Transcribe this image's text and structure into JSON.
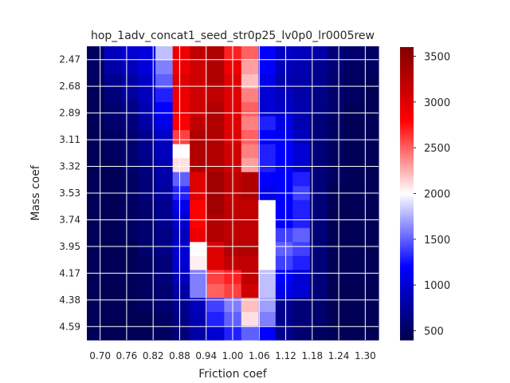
{
  "chart_data": {
    "type": "heatmap",
    "title": "hop_1adv_concat1_seed_str0p25_lv0p0_lr0005rew",
    "xlabel": "Friction coef",
    "ylabel": "Mass coef",
    "x_tick_labels": [
      "0.70",
      "0.76",
      "0.82",
      "0.88",
      "0.94",
      "1.00",
      "1.06",
      "1.12",
      "1.18",
      "1.24",
      "1.30"
    ],
    "y_tick_labels": [
      "2.47",
      "2.68",
      "2.89",
      "3.11",
      "3.32",
      "3.53",
      "3.74",
      "3.95",
      "4.17",
      "4.38",
      "4.59"
    ],
    "colorbar": {
      "colormap": "seismic",
      "vmin": 400,
      "vmax": 3600,
      "ticks": [
        500,
        1000,
        1500,
        2000,
        2500,
        3000,
        3500
      ]
    },
    "grid": true,
    "values": [
      [
        500,
        900,
        1000,
        1050,
        1800,
        2900,
        3200,
        3300,
        2700,
        2500,
        1200,
        950,
        900,
        800,
        600,
        550,
        500
      ],
      [
        500,
        800,
        900,
        1050,
        1600,
        2900,
        3100,
        3300,
        2900,
        2300,
        1200,
        900,
        850,
        700,
        600,
        500,
        500
      ],
      [
        500,
        700,
        800,
        950,
        1500,
        3000,
        3100,
        3300,
        3000,
        2200,
        1100,
        850,
        800,
        700,
        550,
        500,
        450
      ],
      [
        450,
        600,
        750,
        900,
        1300,
        2900,
        3100,
        3200,
        3000,
        2400,
        1000,
        900,
        800,
        650,
        550,
        500,
        450
      ],
      [
        450,
        550,
        650,
        850,
        1200,
        2900,
        3100,
        3300,
        3000,
        2500,
        1000,
        950,
        850,
        650,
        550,
        450,
        450
      ],
      [
        450,
        550,
        600,
        800,
        1100,
        2800,
        3200,
        3300,
        3000,
        2400,
        1300,
        1100,
        850,
        600,
        500,
        450,
        450
      ],
      [
        450,
        500,
        550,
        700,
        950,
        2600,
        3300,
        3300,
        3000,
        2500,
        1200,
        1150,
        900,
        600,
        500,
        450,
        450
      ],
      [
        450,
        500,
        550,
        700,
        900,
        2000,
        3300,
        3300,
        3100,
        2400,
        1300,
        1200,
        1000,
        600,
        500,
        450,
        450
      ],
      [
        450,
        450,
        550,
        650,
        850,
        2100,
        3300,
        3300,
        3100,
        2300,
        1300,
        1200,
        1000,
        600,
        500,
        450,
        450
      ],
      [
        450,
        450,
        500,
        600,
        800,
        1500,
        3000,
        3400,
        3200,
        3300,
        1200,
        1200,
        1300,
        600,
        500,
        450,
        450
      ],
      [
        450,
        450,
        500,
        600,
        750,
        1300,
        3000,
        3400,
        3200,
        3300,
        1100,
        1200,
        1400,
        600,
        450,
        450,
        450
      ],
      [
        450,
        450,
        500,
        550,
        700,
        1100,
        2800,
        3400,
        3200,
        3200,
        2000,
        1200,
        1300,
        600,
        450,
        450,
        450
      ],
      [
        450,
        450,
        500,
        550,
        700,
        1000,
        2800,
        3300,
        3200,
        3200,
        2000,
        1200,
        1300,
        600,
        450,
        450,
        450
      ],
      [
        450,
        450,
        500,
        550,
        650,
        900,
        2900,
        3300,
        3200,
        3200,
        2000,
        1400,
        1500,
        600,
        450,
        450,
        450
      ],
      [
        450,
        450,
        450,
        550,
        650,
        1000,
        2000,
        3000,
        3300,
        3300,
        2000,
        1500,
        1400,
        600,
        450,
        450,
        450
      ],
      [
        450,
        450,
        450,
        500,
        600,
        1000,
        2050,
        3000,
        3200,
        3200,
        2000,
        1400,
        1300,
        600,
        450,
        450,
        450
      ],
      [
        450,
        450,
        450,
        500,
        600,
        900,
        1600,
        2600,
        2700,
        3200,
        1800,
        1200,
        1000,
        600,
        450,
        450,
        450
      ],
      [
        450,
        450,
        450,
        500,
        550,
        800,
        1600,
        2500,
        2600,
        3100,
        1800,
        1100,
        1000,
        600,
        450,
        450,
        450
      ],
      [
        450,
        450,
        450,
        500,
        550,
        700,
        900,
        1400,
        1600,
        2200,
        1700,
        700,
        600,
        550,
        450,
        450,
        450
      ],
      [
        450,
        450,
        450,
        450,
        500,
        650,
        850,
        1300,
        1500,
        2100,
        1600,
        700,
        600,
        550,
        450,
        450,
        450
      ],
      [
        450,
        450,
        450,
        450,
        500,
        600,
        800,
        1000,
        1300,
        1500,
        1200,
        700,
        550,
        500,
        450,
        450,
        450
      ]
    ]
  }
}
